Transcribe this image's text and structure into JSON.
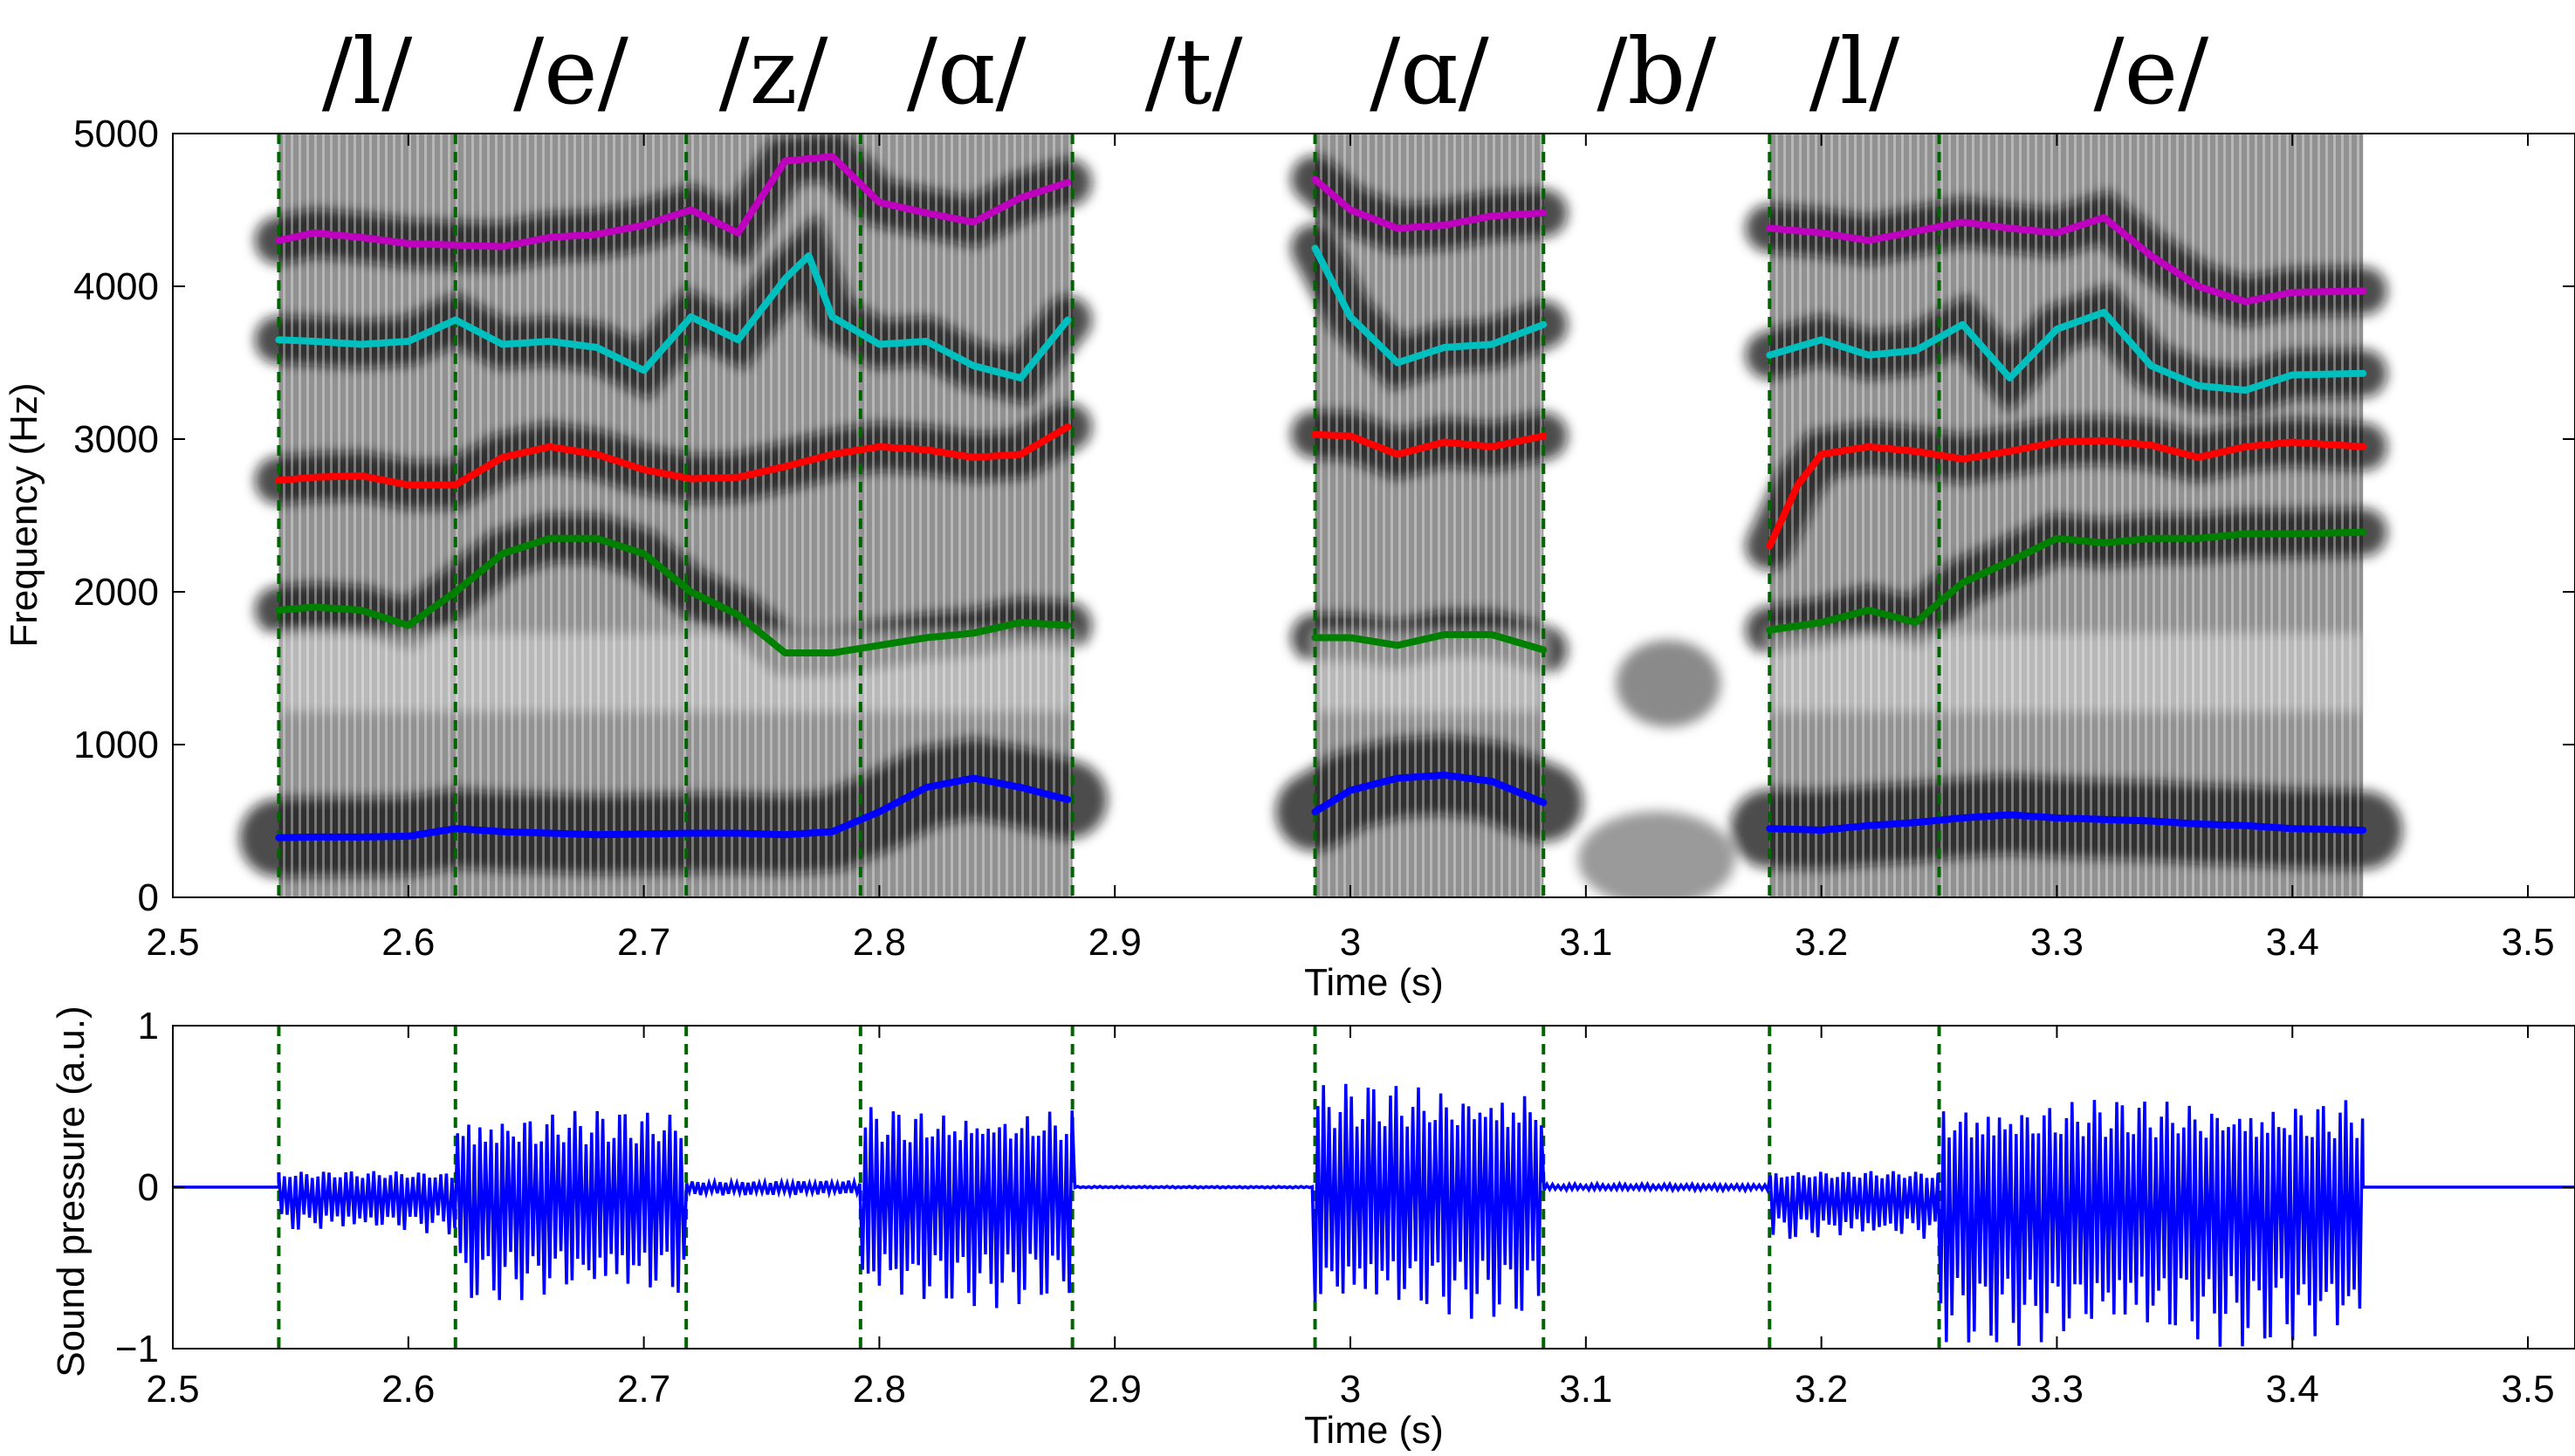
{
  "chart_data": [
    {
      "type": "heatmap",
      "panel": "spectrogram",
      "xlabel": "Time (s)",
      "ylabel": "Frequency (Hz)",
      "xlim": [
        2.5,
        3.52
      ],
      "ylim": [
        0,
        5000
      ],
      "xticks": [
        "2.5",
        "2.6",
        "2.7",
        "2.8",
        "2.9",
        "3",
        "3.1",
        "3.2",
        "3.3",
        "3.4",
        "3.5"
      ],
      "yticks": [
        "0",
        "1000",
        "2000",
        "3000",
        "4000",
        "5000"
      ],
      "grid": false,
      "colormap": "grayscale (dark = high energy)",
      "voiced_segments": [
        [
          2.545,
          2.882
        ],
        [
          2.985,
          3.082
        ],
        [
          3.178,
          3.43
        ]
      ],
      "phonemes": [
        {
          "label": "/l/",
          "start": 2.545,
          "end": 2.62
        },
        {
          "label": "/e/",
          "start": 2.62,
          "end": 2.718
        },
        {
          "label": "/z/",
          "start": 2.718,
          "end": 2.792
        },
        {
          "label": "/ɑ/",
          "start": 2.792,
          "end": 2.882
        },
        {
          "label": "/t/",
          "start": 2.882,
          "end": 2.985
        },
        {
          "label": "/ɑ/",
          "start": 2.985,
          "end": 3.082
        },
        {
          "label": "/b/",
          "start": 3.082,
          "end": 3.178
        },
        {
          "label": "/l/",
          "start": 3.178,
          "end": 3.25
        },
        {
          "label": "/e/",
          "start": 3.25,
          "end": 3.43
        }
      ],
      "boundaries": [
        2.545,
        2.62,
        2.718,
        2.792,
        2.882,
        2.985,
        3.082,
        3.178,
        3.25
      ],
      "series": [
        {
          "color": "#0000ff",
          "segments": [
            [
              [
                2.545,
                390
              ],
              [
                2.56,
                395
              ],
              [
                2.58,
                395
              ],
              [
                2.6,
                400
              ],
              [
                2.62,
                450
              ],
              [
                2.64,
                430
              ],
              [
                2.66,
                420
              ],
              [
                2.68,
                410
              ],
              [
                2.7,
                415
              ],
              [
                2.72,
                420
              ],
              [
                2.74,
                420
              ],
              [
                2.76,
                410
              ],
              [
                2.78,
                430
              ],
              [
                2.8,
                560
              ],
              [
                2.82,
                720
              ],
              [
                2.84,
                780
              ],
              [
                2.86,
                720
              ],
              [
                2.88,
                640
              ]
            ],
            [
              [
                2.985,
                560
              ],
              [
                3.0,
                700
              ],
              [
                3.02,
                780
              ],
              [
                3.04,
                800
              ],
              [
                3.06,
                760
              ],
              [
                3.082,
                620
              ]
            ],
            [
              [
                3.178,
                450
              ],
              [
                3.2,
                440
              ],
              [
                3.22,
                470
              ],
              [
                3.24,
                490
              ],
              [
                3.26,
                520
              ],
              [
                3.28,
                540
              ],
              [
                3.3,
                520
              ],
              [
                3.32,
                510
              ],
              [
                3.34,
                500
              ],
              [
                3.36,
                480
              ],
              [
                3.38,
                470
              ],
              [
                3.4,
                450
              ],
              [
                3.43,
                440
              ]
            ]
          ]
        },
        {
          "color": "#008000",
          "segments": [
            [
              [
                2.545,
                1880
              ],
              [
                2.56,
                1900
              ],
              [
                2.58,
                1880
              ],
              [
                2.6,
                1780
              ],
              [
                2.62,
                2000
              ],
              [
                2.64,
                2250
              ],
              [
                2.66,
                2350
              ],
              [
                2.68,
                2350
              ],
              [
                2.7,
                2250
              ],
              [
                2.72,
                2000
              ],
              [
                2.74,
                1850
              ],
              [
                2.76,
                1600
              ],
              [
                2.78,
                1600
              ],
              [
                2.8,
                1650
              ],
              [
                2.82,
                1700
              ],
              [
                2.84,
                1730
              ],
              [
                2.86,
                1800
              ],
              [
                2.88,
                1780
              ]
            ],
            [
              [
                2.985,
                1700
              ],
              [
                3.0,
                1700
              ],
              [
                3.02,
                1650
              ],
              [
                3.04,
                1720
              ],
              [
                3.06,
                1720
              ],
              [
                3.082,
                1620
              ]
            ],
            [
              [
                3.178,
                1750
              ],
              [
                3.2,
                1800
              ],
              [
                3.22,
                1880
              ],
              [
                3.24,
                1800
              ],
              [
                3.26,
                2060
              ],
              [
                3.28,
                2200
              ],
              [
                3.3,
                2350
              ],
              [
                3.32,
                2320
              ],
              [
                3.34,
                2350
              ],
              [
                3.36,
                2350
              ],
              [
                3.38,
                2380
              ],
              [
                3.4,
                2380
              ],
              [
                3.43,
                2390
              ]
            ]
          ]
        },
        {
          "color": "#ff0000",
          "segments": [
            [
              [
                2.545,
                2730
              ],
              [
                2.56,
                2750
              ],
              [
                2.58,
                2760
              ],
              [
                2.6,
                2700
              ],
              [
                2.62,
                2700
              ],
              [
                2.64,
                2880
              ],
              [
                2.66,
                2950
              ],
              [
                2.68,
                2900
              ],
              [
                2.7,
                2800
              ],
              [
                2.72,
                2740
              ],
              [
                2.74,
                2750
              ],
              [
                2.76,
                2820
              ],
              [
                2.78,
                2900
              ],
              [
                2.8,
                2950
              ],
              [
                2.82,
                2930
              ],
              [
                2.84,
                2880
              ],
              [
                2.86,
                2900
              ],
              [
                2.88,
                3080
              ]
            ],
            [
              [
                2.985,
                3030
              ],
              [
                3.0,
                3020
              ],
              [
                3.02,
                2900
              ],
              [
                3.04,
                2980
              ],
              [
                3.06,
                2950
              ],
              [
                3.082,
                3020
              ]
            ],
            [
              [
                3.178,
                2300
              ],
              [
                3.19,
                2700
              ],
              [
                3.2,
                2900
              ],
              [
                3.22,
                2950
              ],
              [
                3.24,
                2920
              ],
              [
                3.26,
                2870
              ],
              [
                3.28,
                2920
              ],
              [
                3.3,
                2980
              ],
              [
                3.32,
                2990
              ],
              [
                3.34,
                2960
              ],
              [
                3.36,
                2880
              ],
              [
                3.38,
                2950
              ],
              [
                3.4,
                2980
              ],
              [
                3.43,
                2950
              ]
            ]
          ]
        },
        {
          "color": "#00bfbf",
          "segments": [
            [
              [
                2.545,
                3650
              ],
              [
                2.56,
                3640
              ],
              [
                2.58,
                3620
              ],
              [
                2.6,
                3640
              ],
              [
                2.62,
                3780
              ],
              [
                2.64,
                3620
              ],
              [
                2.66,
                3640
              ],
              [
                2.68,
                3600
              ],
              [
                2.7,
                3450
              ],
              [
                2.72,
                3800
              ],
              [
                2.74,
                3650
              ],
              [
                2.76,
                4050
              ],
              [
                2.77,
                4200
              ],
              [
                2.78,
                3800
              ],
              [
                2.8,
                3620
              ],
              [
                2.82,
                3640
              ],
              [
                2.84,
                3480
              ],
              [
                2.86,
                3400
              ],
              [
                2.88,
                3780
              ]
            ],
            [
              [
                2.985,
                4250
              ],
              [
                3.0,
                3800
              ],
              [
                3.02,
                3500
              ],
              [
                3.04,
                3600
              ],
              [
                3.06,
                3620
              ],
              [
                3.082,
                3750
              ]
            ],
            [
              [
                3.178,
                3550
              ],
              [
                3.2,
                3650
              ],
              [
                3.22,
                3550
              ],
              [
                3.24,
                3580
              ],
              [
                3.26,
                3750
              ],
              [
                3.28,
                3400
              ],
              [
                3.3,
                3720
              ],
              [
                3.32,
                3830
              ],
              [
                3.34,
                3480
              ],
              [
                3.36,
                3350
              ],
              [
                3.38,
                3320
              ],
              [
                3.4,
                3420
              ],
              [
                3.43,
                3430
              ]
            ]
          ]
        },
        {
          "color": "#bf00bf",
          "segments": [
            [
              [
                2.545,
                4300
              ],
              [
                2.56,
                4350
              ],
              [
                2.58,
                4320
              ],
              [
                2.6,
                4280
              ],
              [
                2.62,
                4270
              ],
              [
                2.64,
                4260
              ],
              [
                2.66,
                4320
              ],
              [
                2.68,
                4340
              ],
              [
                2.7,
                4400
              ],
              [
                2.72,
                4500
              ],
              [
                2.74,
                4350
              ],
              [
                2.76,
                4820
              ],
              [
                2.78,
                4850
              ],
              [
                2.8,
                4550
              ],
              [
                2.82,
                4480
              ],
              [
                2.84,
                4420
              ],
              [
                2.86,
                4580
              ],
              [
                2.88,
                4680
              ]
            ],
            [
              [
                2.985,
                4700
              ],
              [
                3.0,
                4500
              ],
              [
                3.02,
                4380
              ],
              [
                3.04,
                4400
              ],
              [
                3.06,
                4460
              ],
              [
                3.082,
                4480
              ]
            ],
            [
              [
                3.178,
                4380
              ],
              [
                3.2,
                4350
              ],
              [
                3.22,
                4300
              ],
              [
                3.24,
                4360
              ],
              [
                3.26,
                4420
              ],
              [
                3.28,
                4380
              ],
              [
                3.3,
                4350
              ],
              [
                3.32,
                4450
              ],
              [
                3.34,
                4200
              ],
              [
                3.36,
                4000
              ],
              [
                3.38,
                3900
              ],
              [
                3.4,
                3960
              ],
              [
                3.43,
                3970
              ]
            ]
          ]
        }
      ]
    },
    {
      "type": "line",
      "panel": "waveform",
      "xlabel": "Time (s)",
      "ylabel": "Sound pressure (a.u.)",
      "xlim": [
        2.5,
        3.52
      ],
      "ylim": [
        -1,
        1
      ],
      "xticks": [
        "2.5",
        "2.6",
        "2.7",
        "2.8",
        "2.9",
        "3",
        "3.1",
        "3.2",
        "3.3",
        "3.4",
        "3.5"
      ],
      "yticks": [
        "−1",
        "0",
        "1"
      ],
      "grid": false,
      "line_color": "#0000ff",
      "boundaries": [
        2.545,
        2.62,
        2.718,
        2.792,
        2.882,
        2.985,
        3.082,
        3.178,
        3.25
      ],
      "amplitude_envelope": [
        {
          "start": 2.545,
          "end": 2.62,
          "pos": 0.1,
          "neg": -0.3
        },
        {
          "start": 2.62,
          "end": 2.718,
          "pos": 0.48,
          "neg": -0.72
        },
        {
          "start": 2.718,
          "end": 2.792,
          "pos": 0.04,
          "neg": -0.05
        },
        {
          "start": 2.792,
          "end": 2.882,
          "pos": 0.5,
          "neg": -0.75
        },
        {
          "start": 2.882,
          "end": 2.985,
          "pos": 0.005,
          "neg": -0.005
        },
        {
          "start": 2.985,
          "end": 3.082,
          "pos": 0.65,
          "neg": -0.82
        },
        {
          "start": 3.082,
          "end": 3.178,
          "pos": 0.02,
          "neg": -0.02
        },
        {
          "start": 3.178,
          "end": 3.25,
          "pos": 0.1,
          "neg": -0.35
        },
        {
          "start": 3.25,
          "end": 3.43,
          "pos": 0.55,
          "neg": -1.0
        }
      ]
    }
  ]
}
